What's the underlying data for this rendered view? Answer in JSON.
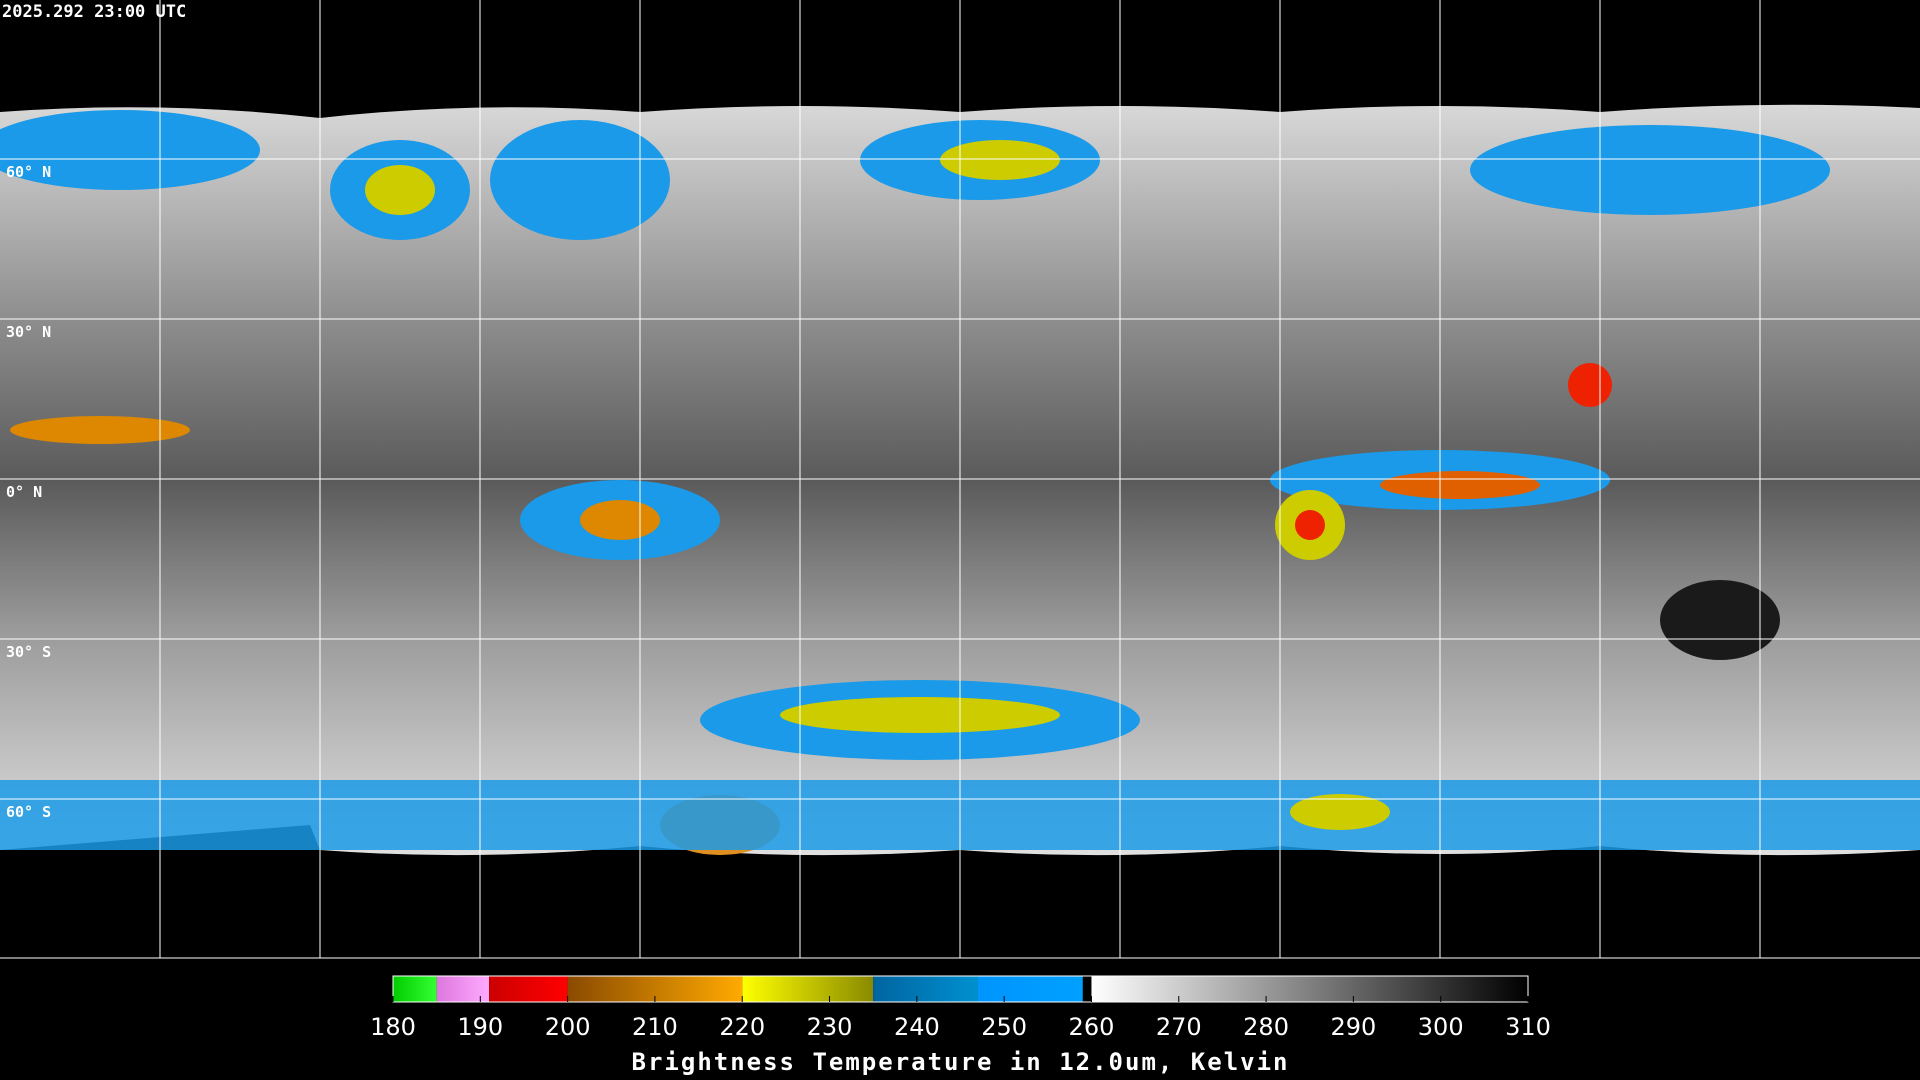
{
  "timestamp": "2025.292 23:00 UTC",
  "lat_lines": [
    {
      "value": 60,
      "label": "60° N"
    },
    {
      "value": 30,
      "label": "30° N"
    },
    {
      "value": 0,
      "label": "0° N"
    },
    {
      "value": -30,
      "label": "30° S"
    },
    {
      "value": -60,
      "label": "60° S"
    }
  ],
  "colorbar": {
    "title": "Brightness Temperature in 12.0um, Kelvin",
    "range": [
      180,
      310
    ],
    "ticks": [
      180,
      190,
      200,
      210,
      220,
      230,
      240,
      250,
      260,
      270,
      280,
      290,
      300,
      310
    ],
    "segments": [
      {
        "from": 180,
        "to": 185,
        "colors": [
          "#00cc00",
          "#33ff33"
        ]
      },
      {
        "from": 185,
        "to": 191,
        "colors": [
          "#dd77dd",
          "#ffaaff"
        ]
      },
      {
        "from": 191,
        "to": 200,
        "colors": [
          "#cc0000",
          "#ff0000"
        ]
      },
      {
        "from": 200,
        "to": 220,
        "colors": [
          "#8a4a00",
          "#ffaa00"
        ]
      },
      {
        "from": 220,
        "to": 235,
        "colors": [
          "#ffff00",
          "#8a8a00"
        ]
      },
      {
        "from": 235,
        "to": 247,
        "colors": [
          "#0065a0",
          "#0090d0"
        ]
      },
      {
        "from": 247,
        "to": 259,
        "colors": [
          "#0095ff",
          "#00a0ff"
        ]
      },
      {
        "from": 260,
        "to": 310,
        "colors": [
          "#ffffff",
          "#000000"
        ]
      }
    ]
  }
}
